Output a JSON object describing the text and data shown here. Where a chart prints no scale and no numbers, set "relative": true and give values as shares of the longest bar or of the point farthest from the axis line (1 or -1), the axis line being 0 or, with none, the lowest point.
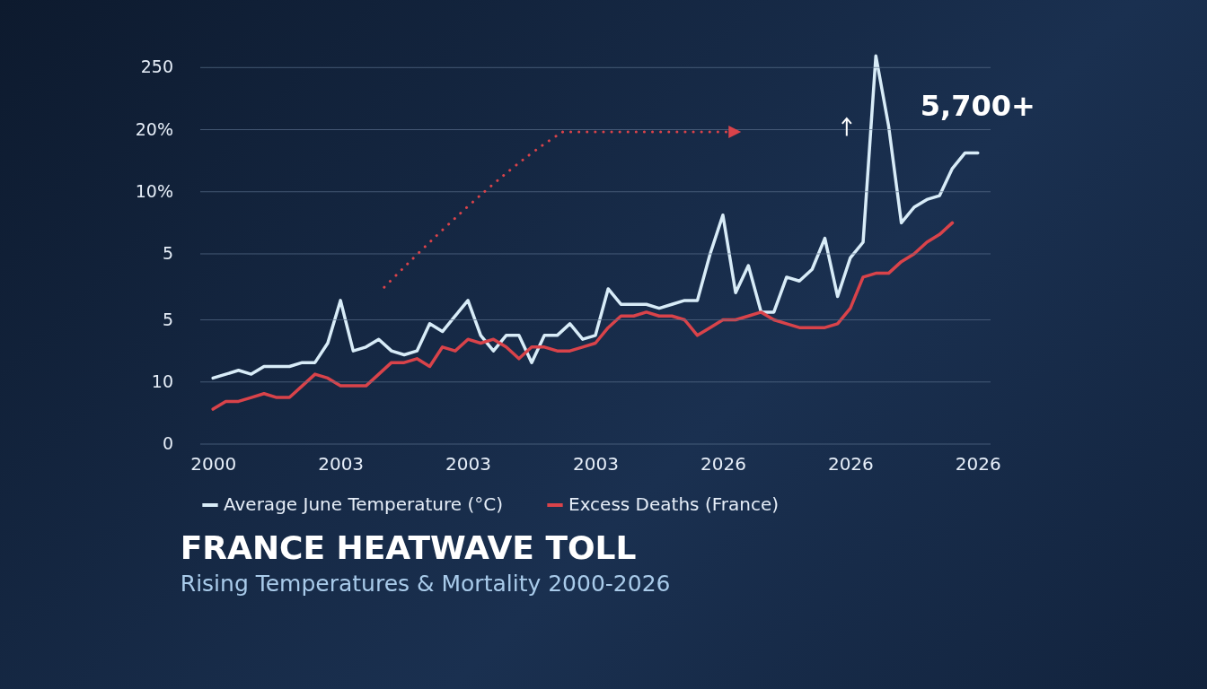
{
  "chart_data": {
    "type": "line",
    "title": "FRANCE HEATWAVE TOLL",
    "subtitle": "Rising Temperatures & Mortality 2000-2026",
    "relative": true,
    "categories": [
      "2000",
      null,
      null,
      null,
      null,
      null,
      null,
      null,
      null,
      null,
      "2003",
      null,
      null,
      null,
      null,
      null,
      null,
      null,
      null,
      null,
      "2003",
      null,
      null,
      null,
      null,
      null,
      null,
      null,
      null,
      null,
      "2003",
      null,
      null,
      null,
      null,
      null,
      null,
      null,
      null,
      null,
      "2026",
      null,
      null,
      null,
      null,
      null,
      null,
      null,
      null,
      null,
      "2026",
      null,
      null,
      null,
      null,
      null,
      null,
      null,
      null,
      null,
      "2026"
    ],
    "legend": "bottom",
    "line_style": "solid",
    "marker": "none",
    "annotations": [
      "5,700+",
      "0",
      "10",
      "5",
      "5",
      "10%",
      "20%",
      "250"
    ],
    "ref_lines": [
      {
        "axis": "y",
        "value": 0
      },
      {
        "axis": "y",
        "value": 0.16
      },
      {
        "axis": "y",
        "value": 0.32
      },
      {
        "axis": "y",
        "value": 0.49
      },
      {
        "axis": "y",
        "value": 0.65
      },
      {
        "axis": "y",
        "value": 0.81
      },
      {
        "axis": "y",
        "value": 0.97
      }
    ],
    "series": [
      {
        "name": "Average June Temperature (°C)",
        "color": "#d8ecf8",
        "values": [
          0.17,
          0.18,
          0.19,
          0.18,
          0.2,
          0.2,
          0.2,
          0.21,
          0.21,
          0.26,
          0.37,
          0.24,
          0.25,
          0.27,
          0.24,
          0.23,
          0.24,
          0.31,
          0.29,
          0.33,
          0.37,
          0.28,
          0.24,
          0.28,
          0.28,
          0.21,
          0.28,
          0.28,
          0.31,
          0.27,
          0.28,
          0.4,
          0.36,
          0.36,
          0.36,
          0.35,
          0.36,
          0.37,
          0.37,
          0.49,
          0.59,
          0.39,
          0.46,
          0.34,
          0.34,
          0.43,
          0.42,
          0.45,
          0.53,
          0.38,
          0.48,
          0.52,
          1,
          0.82,
          0.57,
          0.61,
          0.63,
          0.64,
          0.71,
          0.75,
          0.75
        ]
      },
      {
        "name": "Excess Deaths (France)",
        "color": "#d9434a",
        "values": [
          0.09,
          0.11,
          0.11,
          0.12,
          0.13,
          0.12,
          0.12,
          0.15,
          0.18,
          0.17,
          0.15,
          0.15,
          0.15,
          0.18,
          0.21,
          0.21,
          0.22,
          0.2,
          0.25,
          0.24,
          0.27,
          0.26,
          0.27,
          0.25,
          0.22,
          0.25,
          0.25,
          0.24,
          0.24,
          0.25,
          0.26,
          0.3,
          0.33,
          0.33,
          0.34,
          0.33,
          0.33,
          0.32,
          0.28,
          0.3,
          0.32,
          0.32,
          0.33,
          0.34,
          0.32,
          0.31,
          0.3,
          0.3,
          0.3,
          0.31,
          0.35,
          0.43,
          0.44,
          0.44,
          0.47,
          0.49,
          0.52,
          0.54,
          0.57,
          null,
          null
        ]
      }
    ]
  }
}
